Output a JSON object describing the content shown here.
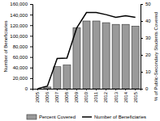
{
  "chart_data": {
    "type": "bar",
    "categories": [
      "2005",
      "2006",
      "2007",
      "2008",
      "2009",
      "2010",
      "2011",
      "2012",
      "2013",
      "2014",
      "2015"
    ],
    "series": [
      {
        "name": "Percent Covered",
        "type": "bar",
        "color": "#9a9a9a",
        "axis": "y2",
        "values": [
          0,
          1,
          13,
          14,
          36,
          40,
          40,
          39,
          38,
          38,
          37
        ]
      },
      {
        "name": "Number of Beneficiaries",
        "type": "line",
        "color": "#000000",
        "values": [
          0,
          5000,
          57000,
          58000,
          115000,
          144000,
          144000,
          140000,
          135000,
          138000,
          135000
        ]
      }
    ],
    "y_label": "Number of Beneficiaries",
    "y2_label": "% of Public-Secondary Students Covered",
    "ylim": [
      0,
      160000
    ],
    "yticks": [
      0,
      {
        "value": 20000,
        "label": "20,000"
      },
      {
        "value": 40000,
        "label": "40,000"
      },
      {
        "value": 60000,
        "label": "60,000"
      },
      {
        "value": 80000,
        "label": "80,000"
      },
      {
        "value": 100000,
        "label": "100,000"
      },
      {
        "value": 120000,
        "label": "120,000"
      },
      {
        "value": 140000,
        "label": "140,000"
      },
      {
        "value": 160000,
        "label": "160,000"
      }
    ],
    "y2lim": [
      0,
      50
    ],
    "y2ticks": [
      0,
      10,
      20,
      30,
      40,
      50
    ],
    "grid": false,
    "legend": "bottom"
  }
}
